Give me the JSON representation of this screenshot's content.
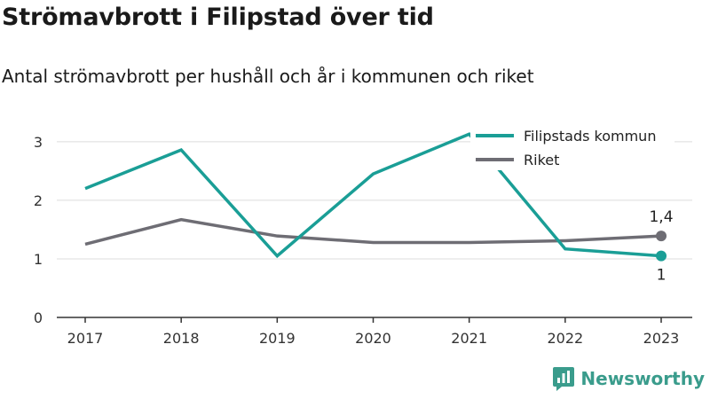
{
  "header": {
    "title": "Strömavbrott i Filipstad över tid",
    "subtitle": "Antal strömavbrott per hushåll och år i kommunen och riket"
  },
  "brand": {
    "name": "Newsworthy",
    "icon": "newsworthy-logo-icon",
    "color": "#3a9c8c"
  },
  "chart_data": {
    "type": "line",
    "title": "Strömavbrott i Filipstad över tid",
    "subtitle": "Antal strömavbrott per hushåll och år i kommunen och riket",
    "xlabel": "",
    "ylabel": "",
    "x": [
      "2017",
      "2018",
      "2019",
      "2020",
      "2021",
      "2022",
      "2023"
    ],
    "ylim": [
      0,
      3.3
    ],
    "yticks": [
      0,
      1,
      2,
      3
    ],
    "grid": true,
    "legend_position": "top-right",
    "series": [
      {
        "name": "Filipstads kommun",
        "color": "#1a9e96",
        "values": [
          2.2,
          2.86,
          1.05,
          2.45,
          3.13,
          1.17,
          1.05
        ],
        "end_label": "1"
      },
      {
        "name": "Riket",
        "color": "#6e6d74",
        "values": [
          1.25,
          1.67,
          1.39,
          1.28,
          1.28,
          1.31,
          1.39
        ],
        "end_label": "1,4"
      }
    ]
  }
}
